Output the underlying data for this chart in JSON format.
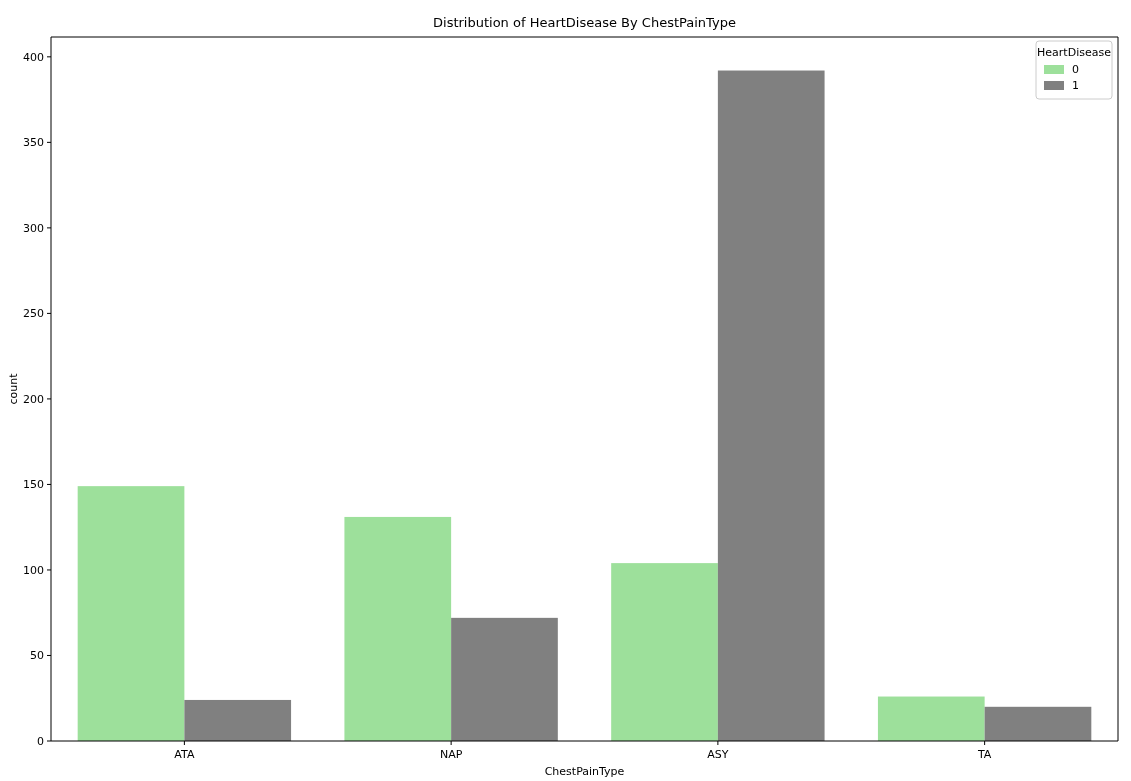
{
  "chart_data": {
    "type": "bar",
    "title": "Distribution of HeartDisease By ChestPainType",
    "xlabel": "ChestPainType",
    "ylabel": "count",
    "categories": [
      "ATA",
      "NAP",
      "ASY",
      "TA"
    ],
    "legend_title": "HeartDisease",
    "legend": "top right",
    "grid": false,
    "ylim": [
      0,
      411.6
    ],
    "yticks": [
      0,
      50,
      100,
      150,
      200,
      250,
      300,
      350,
      400
    ],
    "series": [
      {
        "name": "0",
        "color": "#9de09b",
        "values": [
          149,
          131,
          104,
          26
        ]
      },
      {
        "name": "1",
        "color": "#808080",
        "values": [
          24,
          72,
          392,
          20
        ]
      }
    ]
  }
}
